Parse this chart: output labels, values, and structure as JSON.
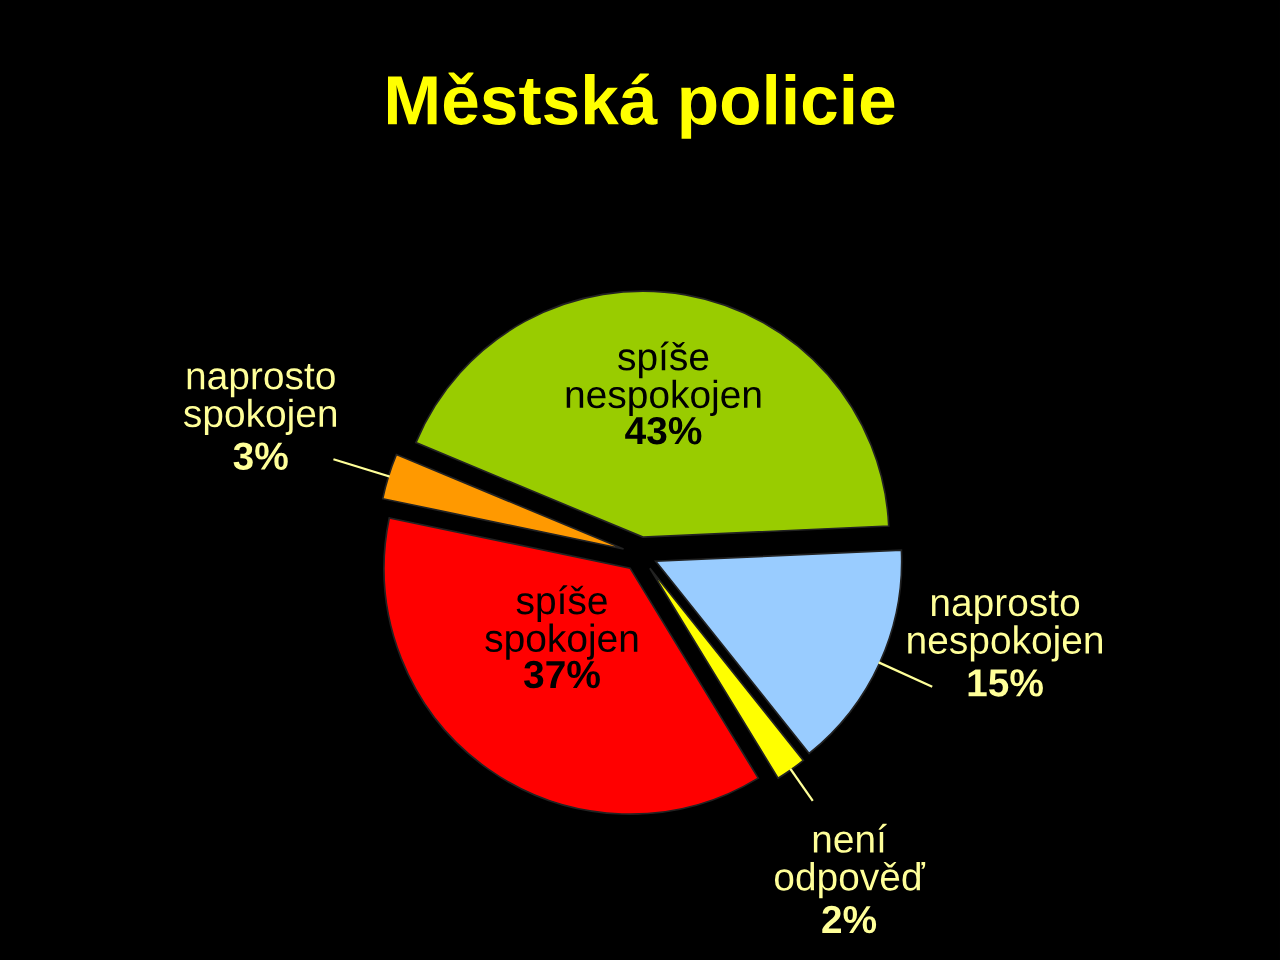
{
  "chart_data": {
    "type": "pie",
    "title": "Městská policie",
    "categories": [
      "spíše\nnespokojen",
      "naprosto\nnespokojen",
      "není\nodpověď",
      "spíše\nspokojen",
      "naprosto\nspokojen"
    ],
    "values": [
      43,
      15,
      2,
      37,
      3
    ],
    "value_labels": [
      "43%",
      "15%",
      "2%",
      "37%",
      "3%"
    ],
    "colors": [
      "#99cc00",
      "#99ccff",
      "#ffff00",
      "#ff0000",
      "#ff9900"
    ]
  }
}
